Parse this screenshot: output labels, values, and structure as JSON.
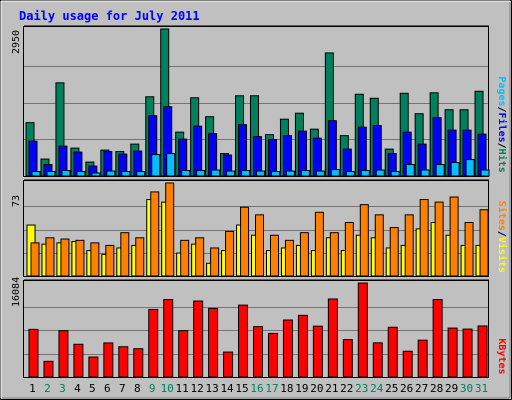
{
  "title": "Daily usage for July 2011",
  "colors": {
    "background": "#c0c0c0",
    "title": "#0000ff",
    "hits": "#00805c",
    "files": "#0000ff",
    "pages": "#00c0ff",
    "visits": "#ffff00",
    "sites": "#ff8000",
    "kbytes": "#ff0000",
    "day_normal": "#000000",
    "day_weekend": "#00805c"
  },
  "chart_data": [
    {
      "type": "bar",
      "name": "hits-files-pages",
      "categories": [
        "1",
        "2",
        "3",
        "4",
        "5",
        "6",
        "7",
        "8",
        "9",
        "10",
        "11",
        "12",
        "13",
        "14",
        "15",
        "16",
        "17",
        "18",
        "19",
        "20",
        "21",
        "22",
        "23",
        "24",
        "25",
        "26",
        "27",
        "28",
        "29",
        "30",
        "31"
      ],
      "weekend_days": [
        "2",
        "3",
        "9",
        "10",
        "16",
        "17",
        "23",
        "24",
        "30",
        "31"
      ],
      "max_label": "2950",
      "ylim": [
        0,
        2950
      ],
      "legend": [
        {
          "label": "Pages",
          "color": "#00c0ff"
        },
        {
          "label": "/",
          "color": "#000000"
        },
        {
          "label": "Files",
          "color": "#0000ff"
        },
        {
          "label": "/",
          "color": "#000000"
        },
        {
          "label": "Hits",
          "color": "#00805c"
        }
      ],
      "series": [
        {
          "key": "hits",
          "values": [
            1070,
            340,
            1870,
            560,
            280,
            520,
            490,
            640,
            1590,
            2950,
            880,
            1570,
            1190,
            450,
            1610,
            1610,
            830,
            1140,
            1260,
            940,
            2470,
            810,
            1640,
            1560,
            540,
            1660,
            1250,
            1670,
            1330,
            1330,
            1700
          ]
        },
        {
          "key": "files",
          "values": [
            700,
            230,
            600,
            480,
            200,
            490,
            440,
            500,
            1210,
            1390,
            740,
            1000,
            850,
            420,
            1030,
            790,
            730,
            810,
            900,
            760,
            1110,
            540,
            980,
            1010,
            450,
            880,
            640,
            1170,
            920,
            920,
            840
          ]
        },
        {
          "key": "pages",
          "values": [
            90,
            90,
            110,
            90,
            60,
            100,
            90,
            90,
            430,
            450,
            110,
            110,
            120,
            100,
            110,
            100,
            90,
            100,
            110,
            100,
            130,
            90,
            110,
            120,
            90,
            230,
            120,
            230,
            270,
            330,
            120
          ]
        }
      ]
    },
    {
      "type": "bar",
      "name": "visits-sites",
      "categories": [
        "1",
        "2",
        "3",
        "4",
        "5",
        "6",
        "7",
        "8",
        "9",
        "10",
        "11",
        "12",
        "13",
        "14",
        "15",
        "16",
        "17",
        "18",
        "19",
        "20",
        "21",
        "22",
        "23",
        "24",
        "25",
        "26",
        "27",
        "28",
        "29",
        "30",
        "31"
      ],
      "max_label": "73",
      "ylim": [
        0,
        73
      ],
      "legend": [
        {
          "label": "Sites",
          "color": "#ff8000"
        },
        {
          "label": "/",
          "color": "#000000"
        },
        {
          "label": "Visits",
          "color": "#ffff00"
        }
      ],
      "series": [
        {
          "key": "visits",
          "values": [
            40,
            25,
            26,
            27,
            20,
            17,
            22,
            24,
            60,
            58,
            18,
            25,
            10,
            20,
            40,
            32,
            20,
            22,
            24,
            20,
            30,
            20,
            32,
            30,
            22,
            24,
            37,
            42,
            32,
            24,
            24
          ]
        },
        {
          "key": "sites",
          "values": [
            26,
            30,
            29,
            28,
            26,
            24,
            34,
            30,
            66,
            73,
            28,
            30,
            22,
            35,
            54,
            48,
            32,
            28,
            34,
            50,
            34,
            42,
            56,
            48,
            38,
            48,
            60,
            58,
            62,
            42,
            52
          ]
        }
      ]
    },
    {
      "type": "bar",
      "name": "kbytes",
      "categories": [
        "1",
        "2",
        "3",
        "4",
        "5",
        "6",
        "7",
        "8",
        "9",
        "10",
        "11",
        "12",
        "13",
        "14",
        "15",
        "16",
        "17",
        "18",
        "19",
        "20",
        "21",
        "22",
        "23",
        "24",
        "25",
        "26",
        "27",
        "28",
        "29",
        "30",
        "31"
      ],
      "max_label": "16084",
      "ylim": [
        0,
        16084
      ],
      "legend": [
        {
          "label": "KBytes",
          "color": "#ff0000"
        }
      ],
      "series": [
        {
          "key": "kbytes",
          "values": [
            8150,
            2680,
            7920,
            5600,
            3420,
            5830,
            5180,
            4840,
            11560,
            13250,
            7920,
            13000,
            11720,
            4270,
            12300,
            8620,
            7460,
            9750,
            10550,
            8700,
            13350,
            6400,
            16084,
            5850,
            8510,
            4410,
            6300,
            13250,
            8370,
            8200,
            8730
          ]
        }
      ]
    }
  ]
}
